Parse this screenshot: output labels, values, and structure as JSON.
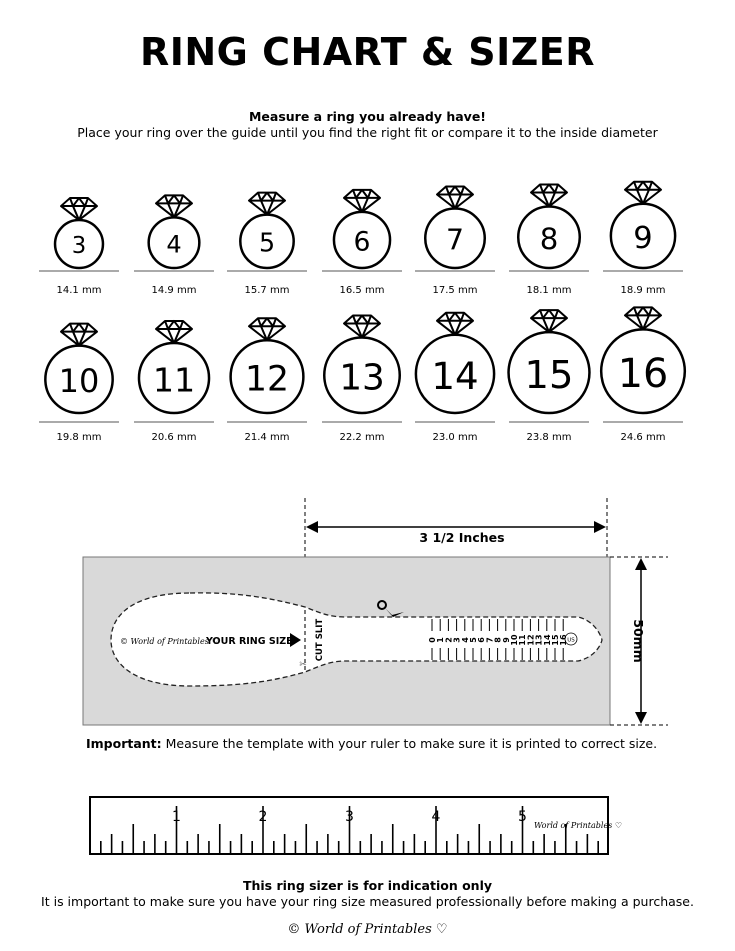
{
  "title": "RING CHART & SIZER",
  "subtitle_bold": "Measure a ring you already have!",
  "subtitle": "Place your ring over the guide until you find the right fit or compare it to the inside diameter",
  "rings": [
    {
      "size": "3",
      "diameter": "14.1 mm"
    },
    {
      "size": "4",
      "diameter": "14.9 mm"
    },
    {
      "size": "5",
      "diameter": "15.7 mm"
    },
    {
      "size": "6",
      "diameter": "16.5 mm"
    },
    {
      "size": "7",
      "diameter": "17.5 mm"
    },
    {
      "size": "8",
      "diameter": "18.1 mm"
    },
    {
      "size": "9",
      "diameter": "18.9 mm"
    },
    {
      "size": "10",
      "diameter": "19.8 mm"
    },
    {
      "size": "11",
      "diameter": "20.6 mm"
    },
    {
      "size": "12",
      "diameter": "21.4 mm"
    },
    {
      "size": "13",
      "diameter": "22.2 mm"
    },
    {
      "size": "14",
      "diameter": "23.0 mm"
    },
    {
      "size": "15",
      "diameter": "23.8 mm"
    },
    {
      "size": "16",
      "diameter": "24.6 mm"
    }
  ],
  "sizer": {
    "width_label": "3 1/2 Inches",
    "height_label": "50mm",
    "brand": "© World of Printables ♡",
    "your_ring_size": "YOUR RING SIZE",
    "cut_slit": "CUT SLIT",
    "scale": [
      "0",
      "1",
      "2",
      "3",
      "4",
      "5",
      "6",
      "7",
      "8",
      "9",
      "10",
      "11",
      "12",
      "13",
      "14",
      "15",
      "16"
    ],
    "unit_badge": "US",
    "background_color": "#d9d9d9"
  },
  "important_label": "Important:",
  "important_text": " Measure the template with your ruler to make sure it is printed to correct size.",
  "ruler": {
    "labels": [
      "1",
      "2",
      "3",
      "4",
      "5"
    ],
    "brand": "World of Printables ♡"
  },
  "footer": {
    "bold": "This ring sizer is for indication only",
    "text": "It is important to make sure you have your ring size measured professionally before making a purchase.",
    "brand": "© World of Printables ♡"
  }
}
